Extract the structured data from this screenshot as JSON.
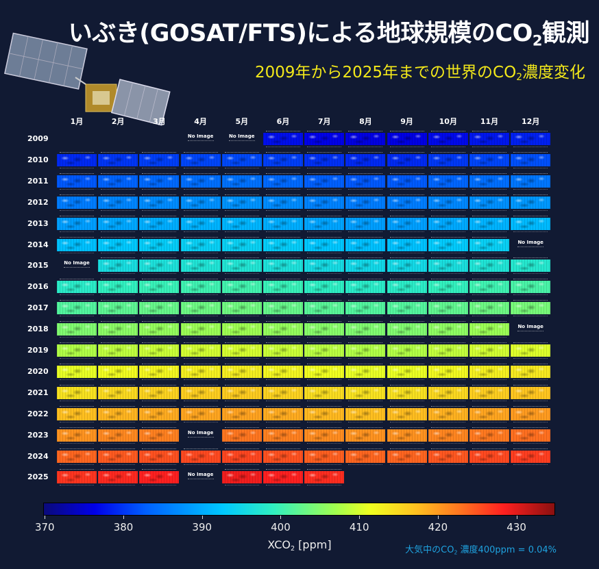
{
  "header": {
    "title_main": "いぶき(GOSAT/FTS)による地球規模のCO",
    "title_sub": "2",
    "title_end": "観測",
    "subtitle_main": "2009年から2025年までの世界のCO",
    "subtitle_sub": "2",
    "subtitle_end": "濃度変化"
  },
  "footer": {
    "note_main": "大気中のCO",
    "note_sub": "2",
    "note_end": " 濃度400ppm = 0.04%"
  },
  "chart_data": {
    "type": "heatmap",
    "title": "いぶき(GOSAT/FTS)による地球規模のCO2観測",
    "months": [
      "1月",
      "2月",
      "3月",
      "4月",
      "5月",
      "6月",
      "7月",
      "8月",
      "9月",
      "10月",
      "11月",
      "12月"
    ],
    "years": [
      "2009",
      "2010",
      "2011",
      "2012",
      "2013",
      "2014",
      "2015",
      "2016",
      "2017",
      "2018",
      "2019",
      "2020",
      "2021",
      "2022",
      "2023",
      "2024",
      "2025"
    ],
    "xlabel_main": "XCO",
    "xlabel_sub": "2",
    "xlabel_end": " [ppm]",
    "colorbar_range": [
      369.8,
      435
    ],
    "colorbar_ticks": [
      "370",
      "380",
      "390",
      "400",
      "410",
      "420",
      "430"
    ],
    "colormap": "jet",
    "no_image_label": "No Image",
    "no_image_cells": [
      {
        "year": "2009",
        "month": 4
      },
      {
        "year": "2009",
        "month": 5
      },
      {
        "year": "2014",
        "month": 12
      },
      {
        "year": "2015",
        "month": 1
      },
      {
        "year": "2018",
        "month": 12
      },
      {
        "year": "2023",
        "month": 4
      },
      {
        "year": "2025",
        "month": 4
      }
    ],
    "values": [
      [
        null,
        null,
        null,
        null,
        null,
        377.3,
        376.4,
        375.9,
        376.0,
        376.9,
        377.8,
        378.5
      ],
      [
        379.1,
        379.9,
        380.5,
        381.0,
        381.2,
        380.5,
        379.6,
        379.1,
        379.2,
        380.1,
        381.0,
        381.7
      ],
      [
        382.3,
        383.1,
        383.7,
        384.2,
        384.4,
        383.7,
        382.8,
        382.3,
        382.4,
        383.3,
        384.2,
        384.9
      ],
      [
        385.5,
        386.3,
        386.9,
        387.4,
        387.6,
        386.9,
        386.0,
        385.5,
        385.6,
        386.5,
        387.4,
        388.1
      ],
      [
        388.7,
        389.5,
        390.1,
        390.6,
        390.8,
        390.1,
        389.2,
        388.7,
        388.8,
        389.7,
        390.6,
        391.3
      ],
      [
        391.9,
        392.7,
        393.3,
        393.8,
        394.0,
        393.3,
        392.4,
        391.9,
        392.0,
        392.9,
        393.8,
        null
      ],
      [
        null,
        395.9,
        396.5,
        397.0,
        397.2,
        396.5,
        395.6,
        395.1,
        395.2,
        396.1,
        397.0,
        397.7
      ],
      [
        398.3,
        399.1,
        399.7,
        400.2,
        400.4,
        399.7,
        398.8,
        398.3,
        398.4,
        399.3,
        400.2,
        400.9
      ],
      [
        401.5,
        402.3,
        402.9,
        403.4,
        403.6,
        402.9,
        402.0,
        401.5,
        401.6,
        402.5,
        403.4,
        404.1
      ],
      [
        404.7,
        405.5,
        406.1,
        406.6,
        406.8,
        406.1,
        405.2,
        404.7,
        404.8,
        405.7,
        406.6,
        null
      ],
      [
        407.9,
        408.7,
        409.3,
        409.8,
        410.0,
        409.3,
        408.4,
        407.9,
        408.0,
        408.9,
        409.8,
        410.5
      ],
      [
        411.1,
        411.9,
        412.5,
        413.0,
        413.2,
        412.5,
        411.6,
        411.1,
        411.2,
        412.1,
        413.0,
        413.7
      ],
      [
        414.3,
        415.1,
        415.7,
        416.2,
        416.4,
        415.7,
        414.8,
        414.3,
        414.4,
        415.3,
        416.2,
        416.9
      ],
      [
        417.5,
        418.3,
        418.9,
        419.4,
        419.6,
        418.9,
        418.0,
        417.5,
        417.6,
        418.5,
        419.4,
        420.1
      ],
      [
        420.7,
        421.5,
        422.1,
        null,
        422.8,
        422.1,
        421.2,
        420.7,
        420.8,
        421.7,
        422.6,
        423.3
      ],
      [
        423.9,
        424.7,
        425.3,
        425.8,
        426.0,
        425.3,
        424.4,
        423.9,
        424.0,
        424.9,
        425.8,
        426.5
      ],
      [
        427.1,
        427.9,
        428.5,
        null,
        429.2,
        428.5,
        427.6,
        null,
        null,
        null,
        null,
        null
      ]
    ]
  }
}
